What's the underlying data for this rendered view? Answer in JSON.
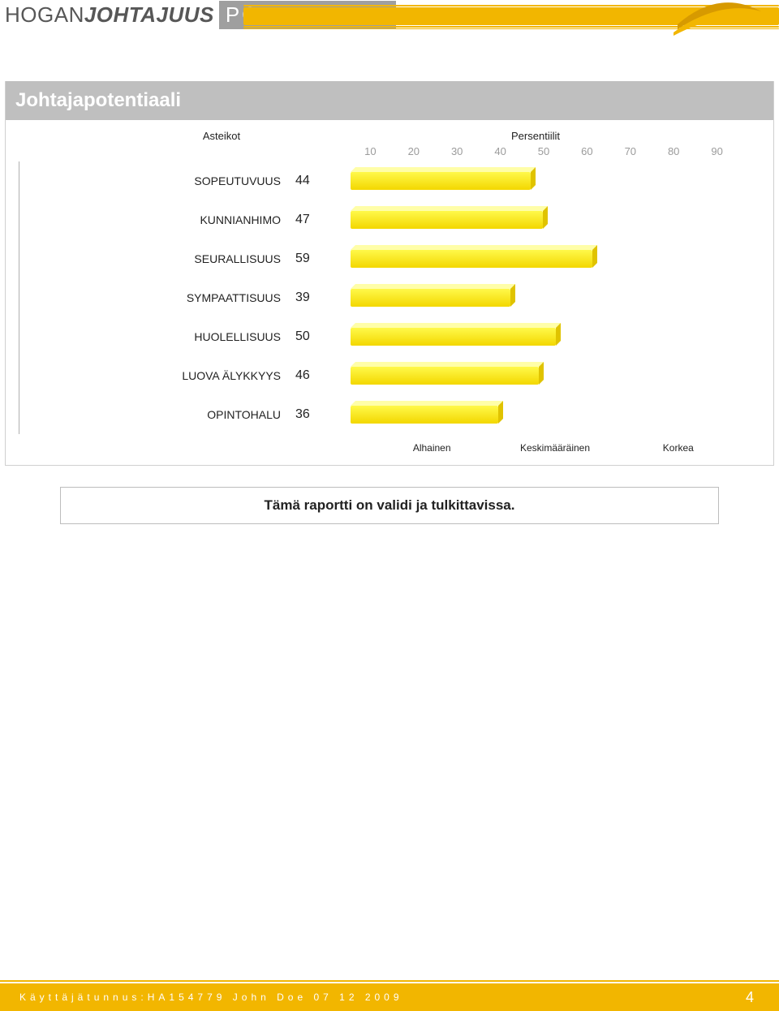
{
  "colors": {
    "brand_yellow": "#f2b600",
    "brand_yellow_dark": "#d79a00",
    "bar_fill_light": "#fff94a",
    "bar_fill_dark": "#f3d700",
    "bar_top": "#fffea8",
    "bar_side": "#e0c300",
    "header_gray": "#bfbfbf",
    "footer_bg": "#f2b600",
    "tick_gray": "#9b9b9b",
    "text": "#222222",
    "border": "#d0d0d0"
  },
  "header": {
    "brand_seg1": "HOGAN",
    "brand_seg2": "JOHTAJUUS",
    "brand_seg3": "POTENTIAALI"
  },
  "section": {
    "title": "Johtajapotentiaali"
  },
  "chart": {
    "type": "bar",
    "scales_label": "Asteikot",
    "percentiles_label": "Persentiilit",
    "xlim": [
      0,
      100
    ],
    "ticks": [
      10,
      20,
      30,
      40,
      50,
      60,
      70,
      80,
      90
    ],
    "legend": {
      "low": "Alhainen",
      "mid": "Keskimääräinen",
      "high": "Korkea",
      "positions": {
        "low": 20,
        "mid": 50,
        "high": 80
      }
    },
    "rows": [
      {
        "label": "SOPEUTUVUUS",
        "value": 44
      },
      {
        "label": "KUNNIANHIMO",
        "value": 47
      },
      {
        "label": "SEURALLISUUS",
        "value": 59
      },
      {
        "label": "SYMPAATTISUUS",
        "value": 39
      },
      {
        "label": "HUOLELLISUUS",
        "value": 50
      },
      {
        "label": "LUOVA ÄLYKKYYS",
        "value": 46
      },
      {
        "label": "OPINTOHALU",
        "value": 36
      }
    ]
  },
  "validity_text": "Tämä raportti on validi ja tulkittavissa.",
  "footer": {
    "text": "Käyttäjätunnus:HA154779 John Doe 07 12 2009",
    "page": "4"
  }
}
